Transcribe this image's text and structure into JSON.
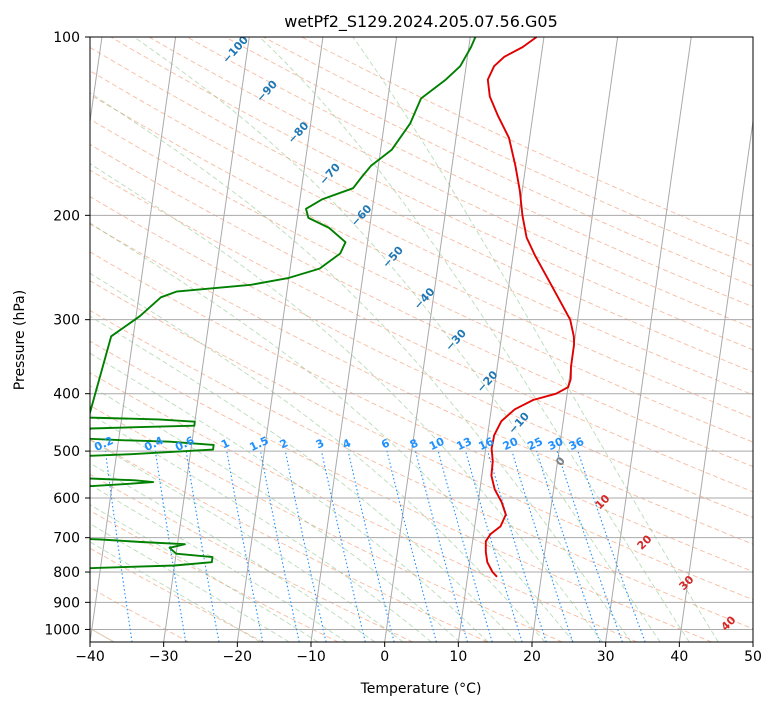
{
  "chart_data": {
    "type": "line",
    "title": "wetPf2_S129.2024.205.07.56.G05",
    "xlabel": "Temperature (°C)",
    "ylabel": "Pressure (hPa)",
    "xlim": [
      -40,
      50
    ],
    "ylim": [
      1050,
      100
    ],
    "y_scale": "log",
    "grid": true,
    "x_ticks": [
      -40,
      -30,
      -20,
      -10,
      0,
      10,
      20,
      30,
      40,
      50
    ],
    "y_ticks": [
      100,
      200,
      300,
      400,
      500,
      600,
      700,
      800,
      900,
      1000
    ],
    "series": [
      {
        "color": "#e00000",
        "points": [
          [
            14.0,
            815
          ],
          [
            13.3,
            800
          ],
          [
            12.4,
            770
          ],
          [
            12.0,
            740
          ],
          [
            11.8,
            710
          ],
          [
            12.3,
            690
          ],
          [
            13.5,
            670
          ],
          [
            14.0,
            640
          ],
          [
            13.2,
            610
          ],
          [
            12.0,
            580
          ],
          [
            11.3,
            550
          ],
          [
            11.2,
            520
          ],
          [
            10.8,
            495
          ],
          [
            10.9,
            470
          ],
          [
            11.6,
            445
          ],
          [
            13.2,
            425
          ],
          [
            15.5,
            410
          ],
          [
            18.5,
            400
          ],
          [
            20.0,
            390
          ],
          [
            20.2,
            378
          ],
          [
            20.0,
            360
          ],
          [
            20.0,
            330
          ],
          [
            19.8,
            320
          ],
          [
            19.0,
            300
          ],
          [
            17.0,
            276
          ],
          [
            15.0,
            254
          ],
          [
            13.0,
            234
          ],
          [
            11.5,
            218
          ],
          [
            10.5,
            200
          ],
          [
            9.7,
            182
          ],
          [
            8.6,
            165
          ],
          [
            7.2,
            148
          ],
          [
            5.3,
            136
          ],
          [
            3.8,
            126
          ],
          [
            3.2,
            118
          ],
          [
            3.8,
            112
          ],
          [
            5.0,
            108
          ],
          [
            7.3,
            104
          ],
          [
            9.0,
            100
          ]
        ]
      },
      {
        "color": "#008000",
        "points": [
          [
            -49.0,
            795
          ],
          [
            -40.0,
            787
          ],
          [
            -30.0,
            780
          ],
          [
            -25.0,
            770
          ],
          [
            -25.0,
            755
          ],
          [
            -30.0,
            745
          ],
          [
            -31.0,
            728
          ],
          [
            -29.0,
            718
          ],
          [
            -35.0,
            712
          ],
          [
            -40.5,
            705
          ],
          [
            -46.0,
            700
          ],
          [
            -45.0,
            575
          ],
          [
            -38.0,
            568
          ],
          [
            -34.5,
            564
          ],
          [
            -37.0,
            560
          ],
          [
            -43.5,
            556
          ],
          [
            -45.0,
            510
          ],
          [
            -38.0,
            506
          ],
          [
            -27.0,
            497
          ],
          [
            -27.0,
            488
          ],
          [
            -33.0,
            482
          ],
          [
            -40.0,
            479
          ],
          [
            -45.0,
            476
          ],
          [
            -44.0,
            458
          ],
          [
            -36.0,
            455
          ],
          [
            -30.0,
            453
          ],
          [
            -30.0,
            446
          ],
          [
            -35.0,
            442
          ],
          [
            -44.5,
            439
          ],
          [
            -43.0,
            320
          ],
          [
            -39.5,
            296
          ],
          [
            -37.0,
            275
          ],
          [
            -35.0,
            269
          ],
          [
            -25.0,
            262
          ],
          [
            -20.0,
            255
          ],
          [
            -16.0,
            246
          ],
          [
            -13.5,
            232
          ],
          [
            -13.0,
            222
          ],
          [
            -15.5,
            210
          ],
          [
            -18.5,
            202
          ],
          [
            -19.0,
            195
          ],
          [
            -17.0,
            188
          ],
          [
            -13.0,
            180
          ],
          [
            -12.0,
            172
          ],
          [
            -11.0,
            165
          ],
          [
            -8.5,
            155
          ],
          [
            -6.5,
            140
          ],
          [
            -5.5,
            127
          ],
          [
            -2.5,
            118
          ],
          [
            -0.8,
            112
          ],
          [
            0.3,
            104
          ],
          [
            0.7,
            100
          ]
        ]
      }
    ],
    "dry_adiabat_labels": [
      "-100",
      "-90",
      "-80",
      "-70",
      "-60",
      "-50",
      "-40",
      "-30",
      "-20",
      "-10"
    ],
    "mixing_ratio_labels": [
      "0.1",
      "0.2",
      "0.4",
      "0.6",
      "1",
      "1.5",
      "2",
      "3",
      "4",
      "6",
      "8",
      "10",
      "13",
      "16",
      "20",
      "25",
      "30",
      "36"
    ],
    "moist_adiabat_labels": [
      "0",
      "10",
      "20",
      "30",
      "40"
    ],
    "colors": {
      "temperature": "#e00000",
      "dewpoint": "#008000",
      "dry_adiabat_labels": "#1f77b4",
      "mixing_ratio": "#1e90ff",
      "moist_adiabat_labels": "#d62728",
      "isotherm_label": "#808080",
      "grid": "#aaaaaa"
    }
  }
}
